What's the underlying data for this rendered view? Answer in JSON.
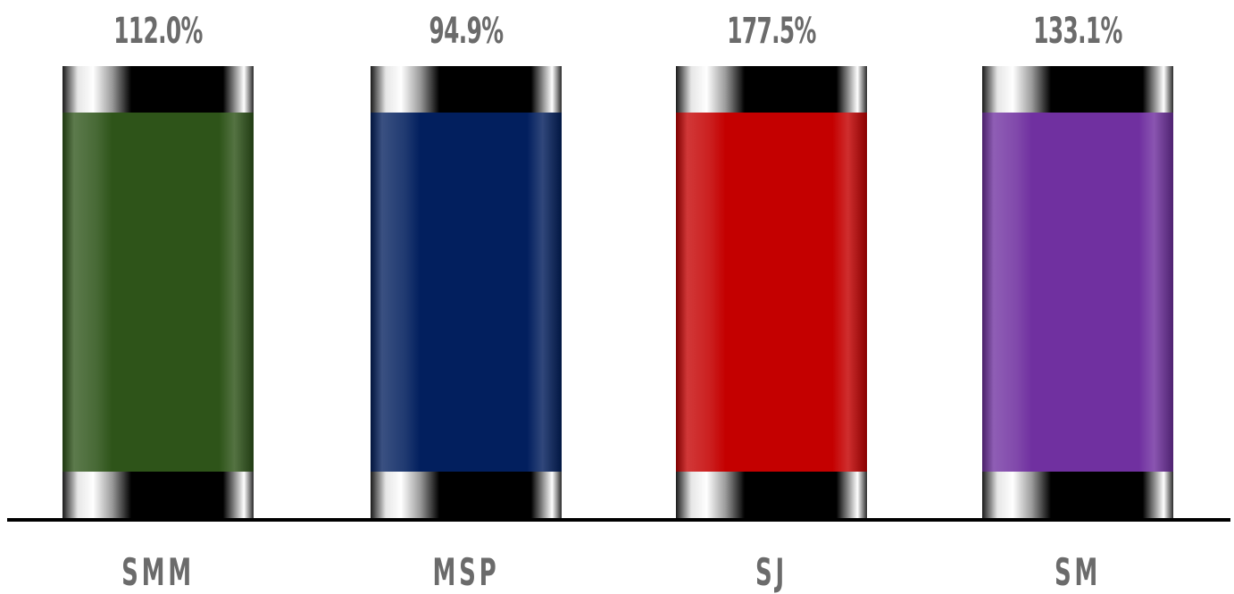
{
  "chart_data": {
    "type": "bar",
    "categories": [
      "SMM",
      "MSP",
      "SJ",
      "SM"
    ],
    "values": [
      112.0,
      94.9,
      177.5,
      133.1
    ],
    "value_labels": [
      "112.0%",
      "94.9%",
      "177.5%",
      "133.1%"
    ],
    "colors": [
      "#2e5419",
      "#021f5e",
      "#c40000",
      "#7030a0"
    ],
    "title": "",
    "xlabel": "",
    "ylabel": "",
    "grid": false,
    "legend": "none"
  }
}
